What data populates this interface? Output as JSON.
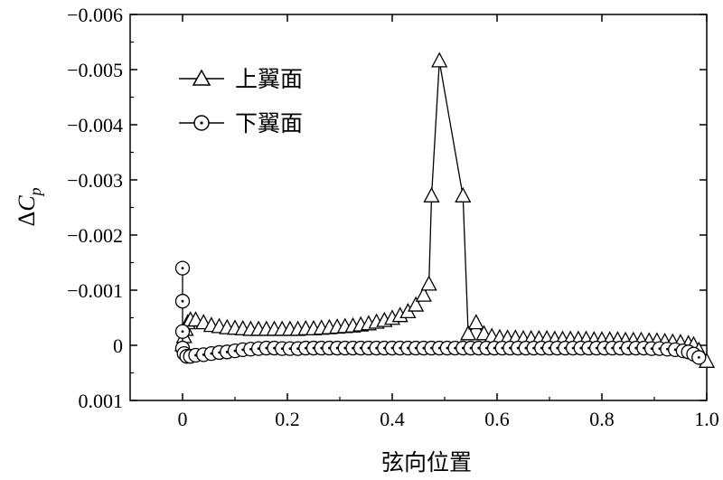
{
  "chart_data": {
    "type": "line",
    "xlabel": "弦向位置",
    "ylabel_prefix": "Δ",
    "ylabel_main": "C",
    "ylabel_sub": "p",
    "xlim": [
      -0.1,
      1.0
    ],
    "ylim": [
      0.001,
      -0.006
    ],
    "y_inverted": true,
    "x_ticks": [
      0,
      0.2,
      0.4,
      0.6,
      0.8,
      1.0
    ],
    "x_tick_labels": [
      "0",
      "0.2",
      "0.4",
      "0.6",
      "0.8",
      "1.0"
    ],
    "y_ticks": [
      -0.006,
      -0.005,
      -0.004,
      -0.003,
      -0.002,
      -0.001,
      0,
      0.001
    ],
    "y_tick_labels": [
      "−0.006",
      "−0.005",
      "−0.004",
      "−0.003",
      "−0.002",
      "−0.001",
      "0",
      "0.001"
    ],
    "grid": false,
    "legend_position": "top-left",
    "series": [
      {
        "name": "上翼面",
        "marker": "triangle",
        "x": [
          0.0,
          0.003,
          0.006,
          0.01,
          0.015,
          0.025,
          0.04,
          0.055,
          0.07,
          0.085,
          0.1,
          0.115,
          0.13,
          0.145,
          0.16,
          0.175,
          0.19,
          0.205,
          0.22,
          0.235,
          0.25,
          0.265,
          0.28,
          0.295,
          0.31,
          0.325,
          0.34,
          0.355,
          0.37,
          0.385,
          0.4,
          0.415,
          0.43,
          0.445,
          0.46,
          0.47,
          0.475,
          0.49,
          0.535,
          0.545,
          0.56,
          0.575,
          0.59,
          0.605,
          0.62,
          0.635,
          0.65,
          0.665,
          0.68,
          0.695,
          0.71,
          0.725,
          0.74,
          0.755,
          0.77,
          0.785,
          0.8,
          0.815,
          0.83,
          0.845,
          0.86,
          0.875,
          0.89,
          0.905,
          0.92,
          0.935,
          0.95,
          0.965,
          0.975,
          0.985,
          1.0
        ],
        "values": [
          0.0,
          -0.00015,
          -0.00028,
          -0.0004,
          -0.00045,
          -0.00045,
          -0.0004,
          -0.00035,
          -0.00033,
          -0.00031,
          -0.0003,
          -0.00029,
          -0.00028,
          -0.00028,
          -0.00028,
          -0.00028,
          -0.00028,
          -0.00028,
          -0.00028,
          -0.00029,
          -0.00029,
          -0.0003,
          -0.00031,
          -0.00032,
          -0.00033,
          -0.00034,
          -0.00036,
          -0.00038,
          -0.00041,
          -0.00044,
          -0.00048,
          -0.00053,
          -0.0006,
          -0.00072,
          -0.0009,
          -0.0011,
          -0.0027,
          -0.00515,
          -0.0027,
          -0.0002,
          -0.0004,
          -0.0002,
          -0.00015,
          -0.00013,
          -0.00012,
          -0.00012,
          -0.00011,
          -0.00011,
          -0.00011,
          -0.00011,
          -0.0001,
          -0.0001,
          -0.0001,
          -0.0001,
          -0.0001,
          -9e-05,
          -9e-05,
          -9e-05,
          -9e-05,
          -8e-05,
          -8e-05,
          -8e-05,
          -7e-05,
          -7e-05,
          -6e-05,
          -5e-05,
          -4e-05,
          -2e-05,
          0.0,
          0.0001,
          0.0003
        ]
      },
      {
        "name": "下翼面",
        "marker": "circle",
        "x": [
          0.0,
          0.0,
          0.0,
          0.0,
          0.003,
          0.008,
          0.015,
          0.025,
          0.04,
          0.055,
          0.07,
          0.085,
          0.1,
          0.115,
          0.13,
          0.145,
          0.16,
          0.175,
          0.19,
          0.205,
          0.22,
          0.235,
          0.25,
          0.265,
          0.28,
          0.295,
          0.31,
          0.325,
          0.34,
          0.355,
          0.37,
          0.385,
          0.4,
          0.415,
          0.43,
          0.445,
          0.46,
          0.475,
          0.49,
          0.505,
          0.52,
          0.535,
          0.55,
          0.565,
          0.58,
          0.595,
          0.61,
          0.625,
          0.64,
          0.655,
          0.67,
          0.685,
          0.7,
          0.715,
          0.73,
          0.745,
          0.76,
          0.775,
          0.79,
          0.805,
          0.82,
          0.835,
          0.85,
          0.865,
          0.88,
          0.895,
          0.91,
          0.925,
          0.94,
          0.955,
          0.965,
          0.975,
          0.985
        ],
        "values": [
          -0.0014,
          -0.0008,
          -0.00025,
          5e-05,
          0.00015,
          0.0002,
          0.0002,
          0.00018,
          0.00017,
          0.00015,
          0.00013,
          0.00012,
          0.0001,
          8e-05,
          7e-05,
          6e-05,
          5e-05,
          5e-05,
          6e-05,
          6e-05,
          6e-05,
          5e-05,
          5e-05,
          5e-05,
          5e-05,
          5e-05,
          5e-05,
          5e-05,
          5e-05,
          5e-05,
          5e-05,
          5e-05,
          5e-05,
          5e-05,
          5e-05,
          5e-05,
          5e-05,
          5e-05,
          5e-05,
          5e-05,
          5e-05,
          5e-05,
          5e-05,
          5e-05,
          5e-05,
          5e-05,
          5e-05,
          5e-05,
          5e-05,
          5e-05,
          5e-05,
          5e-05,
          5e-05,
          5e-05,
          5e-05,
          5e-05,
          5e-05,
          5e-05,
          5e-05,
          5e-05,
          5e-05,
          5e-05,
          5e-05,
          5e-05,
          5e-05,
          6e-05,
          6e-05,
          7e-05,
          8e-05,
          0.0001,
          0.00012,
          0.00016,
          0.00022
        ]
      }
    ]
  }
}
